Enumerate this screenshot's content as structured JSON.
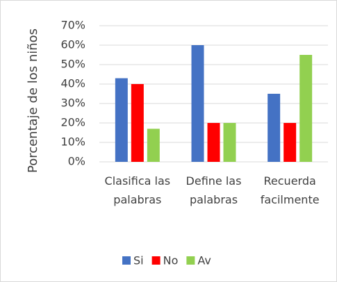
{
  "chart_data": {
    "type": "bar",
    "y_label": "Porcentaje de los niños",
    "categories": [
      "Clasifica las palabras",
      "Define las palabras",
      "Recuerda facilmente"
    ],
    "series": [
      {
        "name": "Si",
        "color": "#4472c4",
        "values": [
          43,
          60,
          35
        ]
      },
      {
        "name": "No",
        "color": "#ff0000",
        "values": [
          40,
          20,
          20
        ]
      },
      {
        "name": "Av",
        "color": "#92d050",
        "values": [
          17,
          20,
          55
        ]
      }
    ],
    "ylim": [
      0,
      70
    ],
    "yticks": [
      {
        "value": 0,
        "label": "0%"
      },
      {
        "value": 10,
        "label": "10%"
      },
      {
        "value": 20,
        "label": "20%"
      },
      {
        "value": 30,
        "label": "30%"
      },
      {
        "value": 40,
        "label": "40%"
      },
      {
        "value": 50,
        "label": "50%"
      },
      {
        "value": 60,
        "label": "60%"
      },
      {
        "value": 70,
        "label": "70%"
      }
    ],
    "grid": true,
    "legend": "bottom"
  }
}
